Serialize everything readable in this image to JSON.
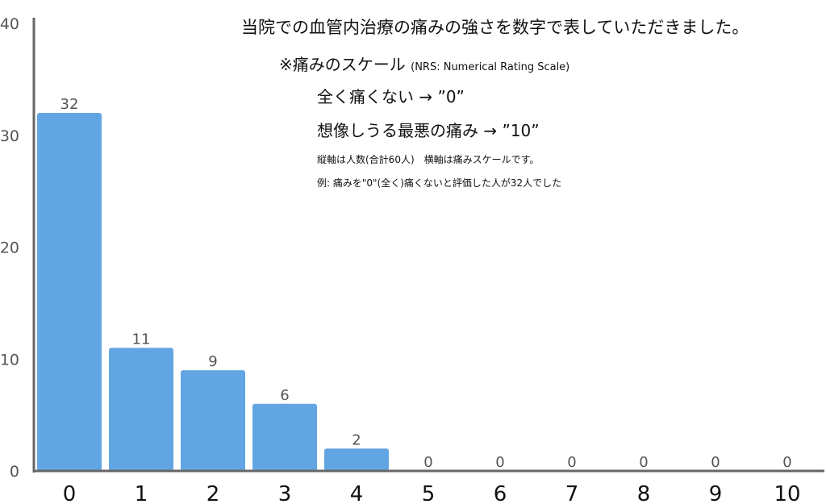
{
  "chart_data": {
    "type": "bar",
    "categories": [
      "0",
      "1",
      "2",
      "3",
      "4",
      "5",
      "6",
      "7",
      "8",
      "9",
      "10"
    ],
    "values": [
      32,
      11,
      9,
      6,
      2,
      0,
      0,
      0,
      0,
      0,
      0
    ],
    "ylim": [
      0,
      40
    ],
    "yticks": [
      "0",
      "10",
      "20",
      "30",
      "40"
    ],
    "grid": false,
    "bar_color": "#62a5e3",
    "axis_color": "#666666",
    "data_labels": true
  },
  "annotations": {
    "line1": "当院での血管内治療の痛みの強さを数字で表していただきました。",
    "line2_main": "※痛みのスケール",
    "line2_sub": "(NRS: Numerical Rating Scale)",
    "line3": "全く痛くない → ”0”",
    "line4": "想像しうる最悪の痛み → ”10”",
    "line5": "縦軸は人数(合計60人)　横軸は痛みスケールです。",
    "line6": "例: 痛みを\"0\"(全く)痛くないと評価した人が32人でした"
  }
}
